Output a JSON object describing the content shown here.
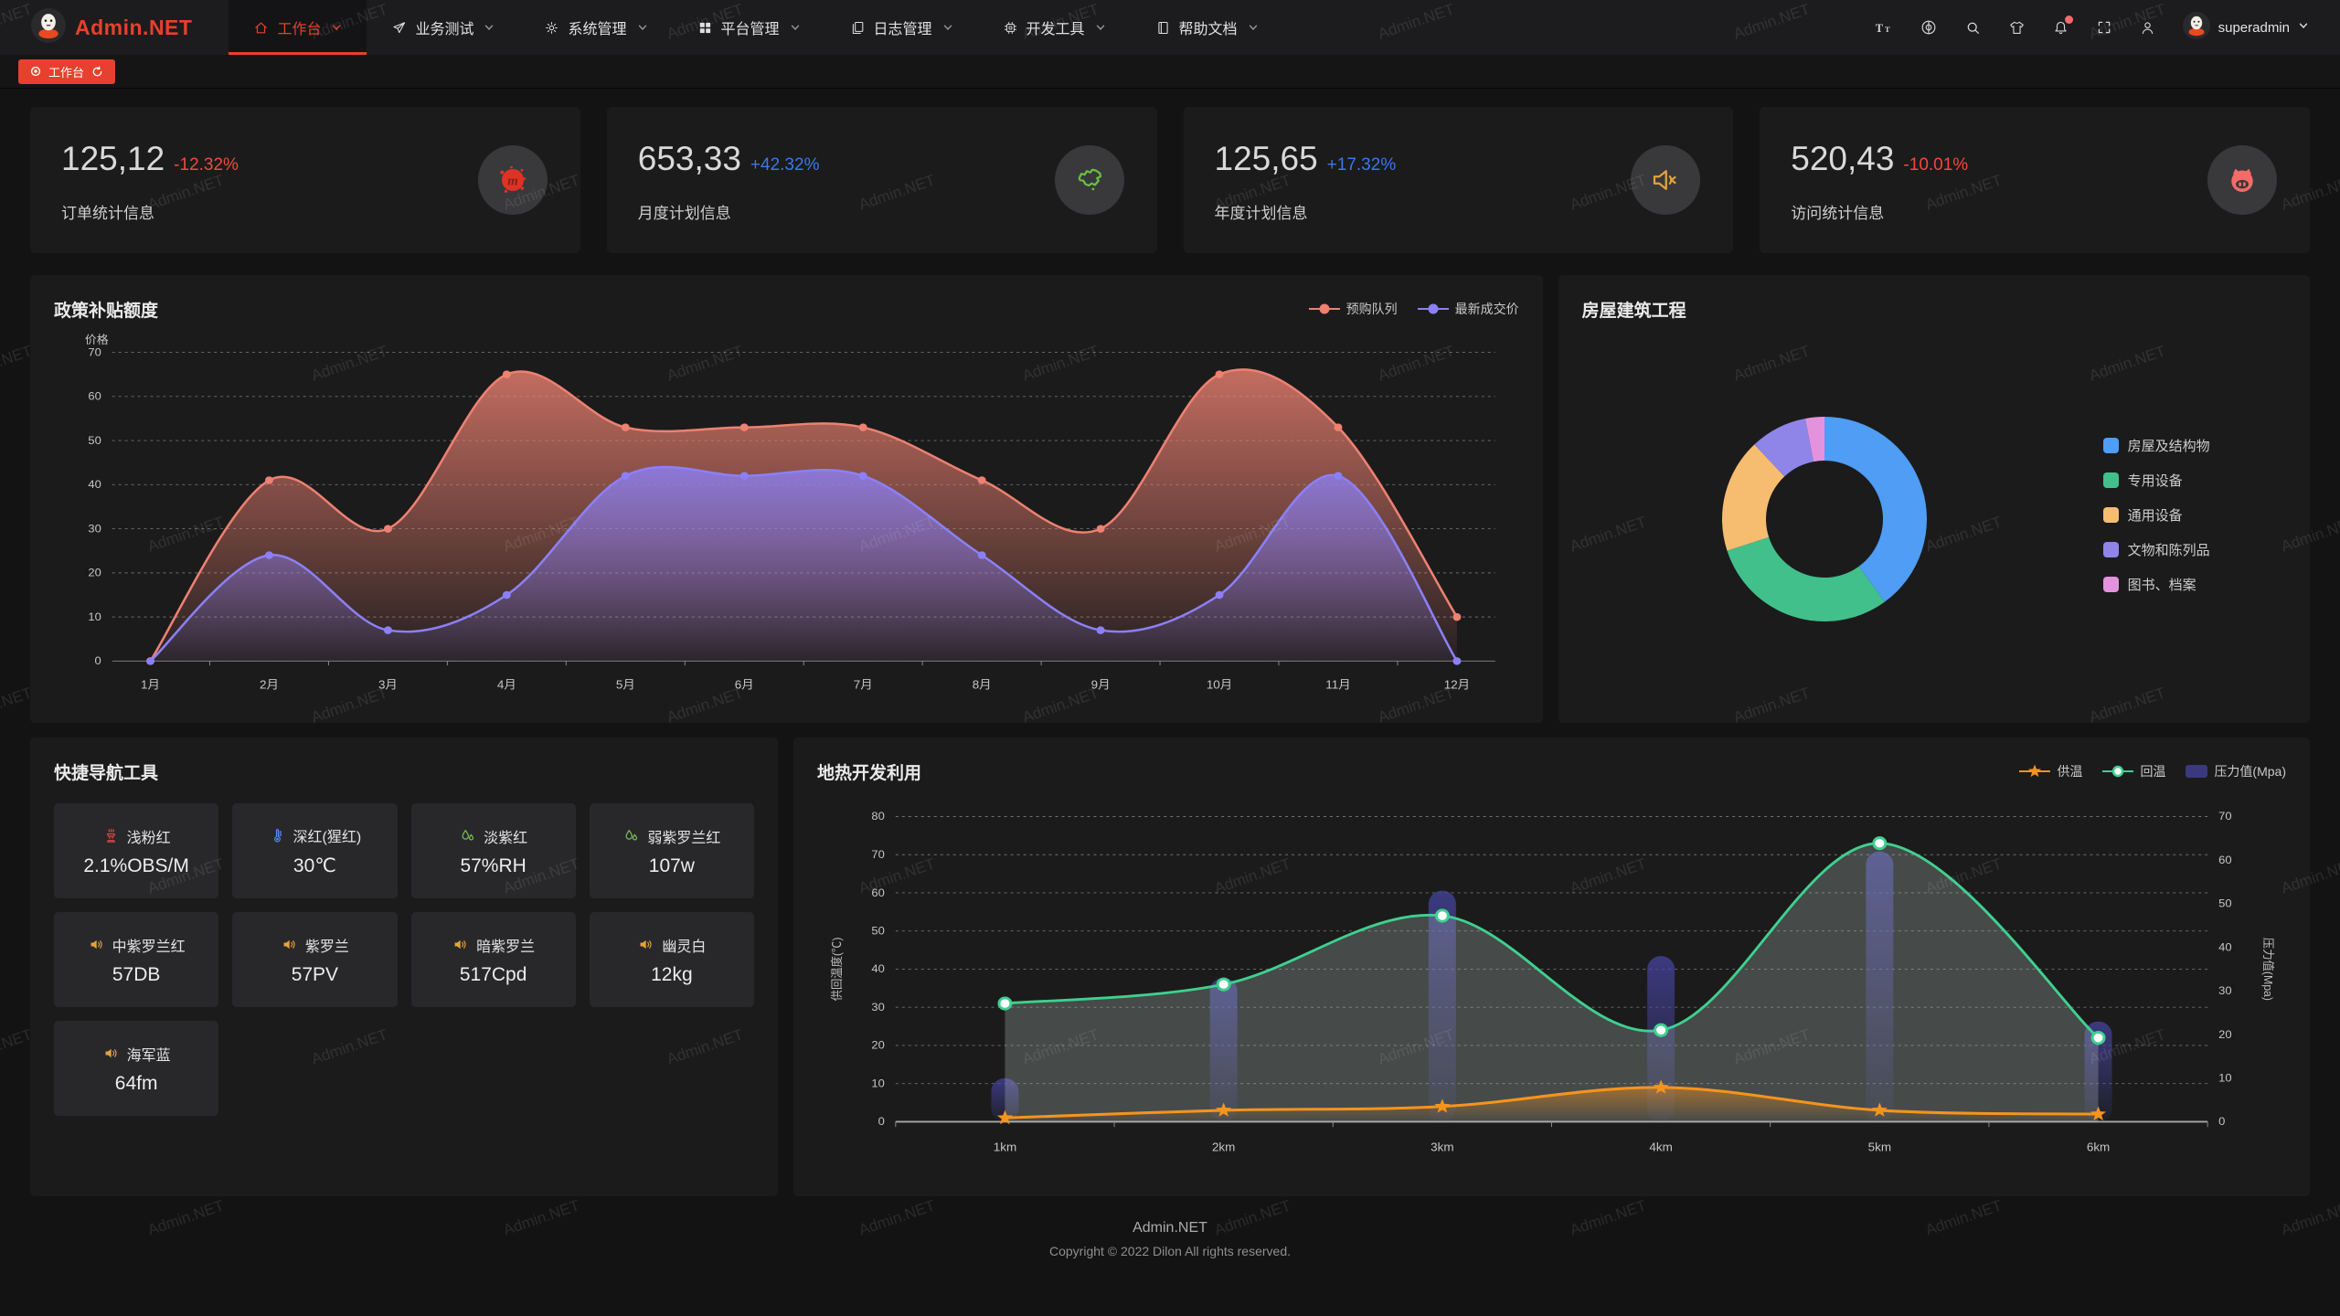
{
  "watermark": {
    "text": "Admin.NET"
  },
  "header": {
    "logo_text": "Admin.NET",
    "username": "superadmin",
    "menu": [
      {
        "label": "工作台",
        "icon": "home-icon",
        "active": true
      },
      {
        "label": "业务测试",
        "icon": "paper-plane-icon",
        "active": false
      },
      {
        "label": "系统管理",
        "icon": "gear-icon",
        "active": false
      },
      {
        "label": "平台管理",
        "icon": "grid-icon",
        "active": false
      },
      {
        "label": "日志管理",
        "icon": "log-icon",
        "active": false
      },
      {
        "label": "开发工具",
        "icon": "cpu-icon",
        "active": false
      },
      {
        "label": "帮助文档",
        "icon": "book-icon",
        "active": false
      }
    ],
    "actions": [
      {
        "icon": "font-size-icon",
        "badge": false
      },
      {
        "icon": "locale-icon",
        "badge": false
      },
      {
        "icon": "search-icon",
        "badge": false
      },
      {
        "icon": "theme-icon",
        "badge": false
      },
      {
        "icon": "bell-icon",
        "badge": true
      },
      {
        "icon": "fullscreen-icon",
        "badge": false
      },
      {
        "icon": "person-icon",
        "badge": false
      }
    ]
  },
  "tabbar": {
    "tabs": [
      {
        "label": "工作台",
        "active": true
      }
    ]
  },
  "stats": [
    {
      "value": "125,12",
      "delta": "-12.32%",
      "trend": "down",
      "label": "订单统计信息",
      "icon": "meetup-blob-icon"
    },
    {
      "value": "653,33",
      "delta": "+42.32%",
      "trend": "up",
      "label": "月度计划信息",
      "icon": "china-map-icon"
    },
    {
      "value": "125,65",
      "delta": "+17.32%",
      "trend": "up",
      "label": "年度计划信息",
      "icon": "speaker-mute-icon"
    },
    {
      "value": "520,43",
      "delta": "-10.01%",
      "trend": "down",
      "label": "访问统计信息",
      "icon": "pig-icon"
    }
  ],
  "quick_nav": {
    "title": "快捷导航工具",
    "items": [
      {
        "name": "浅粉红",
        "value": "2.1%OBS/M",
        "icon": "brazier-icon",
        "icon_color": "#e04b44"
      },
      {
        "name": "深红(猩红)",
        "value": "30℃",
        "icon": "thermometer-icon",
        "icon_color": "#5b8ff9"
      },
      {
        "name": "淡紫红",
        "value": "57%RH",
        "icon": "water-drops-icon",
        "icon_color": "#79c651"
      },
      {
        "name": "弱紫罗兰红",
        "value": "107w",
        "icon": "water-drops-icon",
        "icon_color": "#79c651"
      },
      {
        "name": "中紫罗兰红",
        "value": "57DB",
        "icon": "speaker-icon",
        "icon_color": "#e6a23c"
      },
      {
        "name": "紫罗兰",
        "value": "57PV",
        "icon": "speaker-icon",
        "icon_color": "#e6a23c"
      },
      {
        "name": "暗紫罗兰",
        "value": "517Cpd",
        "icon": "speaker-icon",
        "icon_color": "#e6a23c"
      },
      {
        "name": "幽灵白",
        "value": "12kg",
        "icon": "speaker-icon",
        "icon_color": "#e6a23c"
      },
      {
        "name": "海军蓝",
        "value": "64fm",
        "icon": "speaker-icon",
        "icon_color": "#e6a23c"
      }
    ]
  },
  "chart_data": [
    {
      "type": "area",
      "title": "政策补贴额度",
      "ylabel": "价格",
      "ylim": [
        0,
        70
      ],
      "ytick_step": 10,
      "grid": "dashed",
      "legend_position": "top-right",
      "categories": [
        "1月",
        "2月",
        "3月",
        "4月",
        "5月",
        "6月",
        "7月",
        "8月",
        "9月",
        "10月",
        "11月",
        "12月"
      ],
      "series": [
        {
          "name": "预购队列",
          "color": "#ee8171",
          "values": [
            0,
            41,
            30,
            65,
            53,
            53,
            53,
            41,
            30,
            65,
            53,
            10
          ]
        },
        {
          "name": "最新成交价",
          "color": "#8b80f9",
          "values": [
            0,
            24,
            7,
            15,
            42,
            42,
            42,
            24,
            7,
            15,
            42,
            0
          ]
        }
      ]
    },
    {
      "type": "pie",
      "title": "房屋建筑工程",
      "donut": true,
      "legend_position": "right",
      "segments": [
        {
          "name": "房屋及结构物",
          "value": 40,
          "color": "#4f9df5"
        },
        {
          "name": "专用设备",
          "value": 30,
          "color": "#41c08b"
        },
        {
          "name": "通用设备",
          "value": 18,
          "color": "#f6bd70"
        },
        {
          "name": "文物和陈列品",
          "value": 9,
          "color": "#8f85e8"
        },
        {
          "name": "图书、档案",
          "value": 3,
          "color": "#e393dd"
        }
      ]
    },
    {
      "type": "line+bar",
      "title": "地热开发利用",
      "categories": [
        "1km",
        "2km",
        "3km",
        "4km",
        "5km",
        "6km"
      ],
      "ylabel_left": "供回温度(℃)",
      "ylim_left": [
        0,
        80
      ],
      "ylabel_right": "压力值(Mpa)",
      "ylim_right": [
        0,
        70
      ],
      "grid": "dashed",
      "legend_position": "top-right",
      "series": [
        {
          "name": "供温",
          "type": "line",
          "marker": "star",
          "color": "#f5941d",
          "axis": "left",
          "values": [
            1,
            3,
            4,
            9,
            3,
            2
          ]
        },
        {
          "name": "回温",
          "type": "line",
          "marker": "circle",
          "color": "#3fd08f",
          "axis": "left",
          "values": [
            31,
            36,
            54,
            24,
            73,
            22
          ]
        },
        {
          "name": "压力值(Mpa)",
          "type": "bar",
          "marker": "rect",
          "color": "#46449f",
          "axis": "right",
          "values": [
            10,
            33,
            53,
            38,
            62,
            23
          ]
        }
      ]
    }
  ],
  "footer": {
    "line1": "Admin.NET",
    "line2": "Copyright © 2022 Dilon All rights reserved."
  }
}
